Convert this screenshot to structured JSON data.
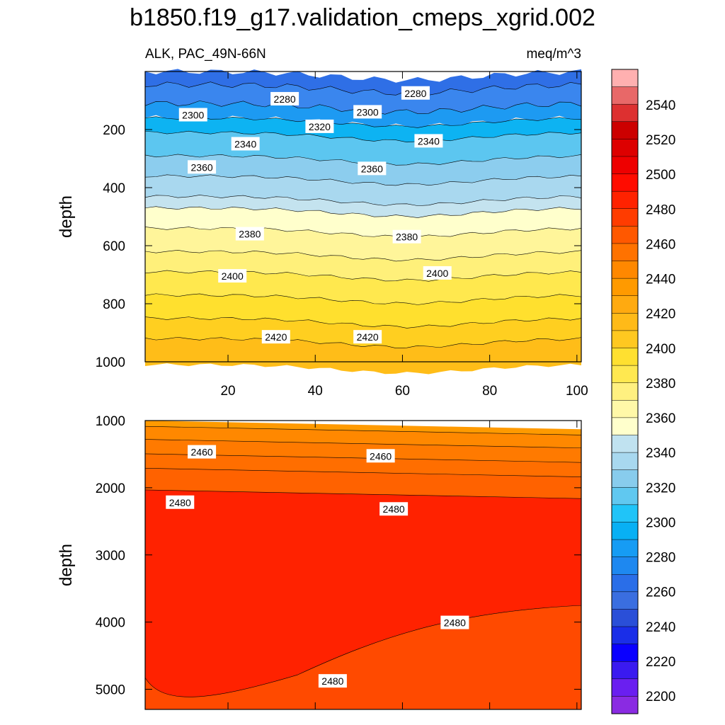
{
  "chart_data": {
    "type": "contour",
    "title": "b1850.f19_g17.validation_cmeps_xgrid.002",
    "left_subtitle": "ALK, PAC_49N-66N",
    "right_subtitle": "meq/m^3",
    "x_range": [
      1,
      101
    ],
    "x_ticks": [
      20,
      40,
      60,
      80,
      100
    ],
    "panels": [
      {
        "name": "upper",
        "ylabel": "depth",
        "ylim": [
          0,
          1000
        ],
        "y_ticks": [
          200,
          400,
          600,
          800,
          1000
        ],
        "contour_labels": [
          {
            "text": "2280",
            "x": 33,
            "y": 95
          },
          {
            "text": "2280",
            "x": 63,
            "y": 75
          },
          {
            "text": "2300",
            "x": 12,
            "y": 150
          },
          {
            "text": "2300",
            "x": 52,
            "y": 140
          },
          {
            "text": "2320",
            "x": 41,
            "y": 190
          },
          {
            "text": "2340",
            "x": 24,
            "y": 250
          },
          {
            "text": "2340",
            "x": 66,
            "y": 240
          },
          {
            "text": "2360",
            "x": 14,
            "y": 330
          },
          {
            "text": "2360",
            "x": 53,
            "y": 335
          },
          {
            "text": "2380",
            "x": 25,
            "y": 560
          },
          {
            "text": "2380",
            "x": 61,
            "y": 570
          },
          {
            "text": "2400",
            "x": 21,
            "y": 705
          },
          {
            "text": "2400",
            "x": 68,
            "y": 695
          },
          {
            "text": "2420",
            "x": 31,
            "y": 915
          },
          {
            "text": "2420",
            "x": 52,
            "y": 915
          }
        ]
      },
      {
        "name": "lower",
        "ylabel": "depth",
        "ylim": [
          1000,
          5300
        ],
        "y_ticks": [
          1000,
          2000,
          3000,
          4000,
          5000
        ],
        "contour_labels": [
          {
            "text": "2460",
            "x": 14,
            "y": 1470
          },
          {
            "text": "2460",
            "x": 55,
            "y": 1530
          },
          {
            "text": "2480",
            "x": 9,
            "y": 2220
          },
          {
            "text": "2480",
            "x": 58,
            "y": 2320
          },
          {
            "text": "2480",
            "x": 72,
            "y": 4010
          },
          {
            "text": "2480",
            "x": 44,
            "y": 4880
          }
        ]
      }
    ],
    "colorbar": {
      "label_values": [
        2200,
        2220,
        2240,
        2260,
        2280,
        2300,
        2320,
        2340,
        2360,
        2380,
        2400,
        2420,
        2440,
        2460,
        2480,
        2500,
        2520,
        2540
      ],
      "colors": [
        "#8a2be2",
        "#6a1ff0",
        "#3a1af0",
        "#0a00ff",
        "#1a2ee8",
        "#2a4fd8",
        "#3a6ee0",
        "#2a6ee8",
        "#1e88f0",
        "#169cf4",
        "#08b0f4",
        "#20c4f8",
        "#60c8f0",
        "#88cced",
        "#a8d8ef",
        "#c0e2f0",
        "#ffffcc",
        "#fff8a8",
        "#fff080",
        "#ffe850",
        "#ffe030",
        "#ffc820",
        "#ffba18",
        "#ffaa10",
        "#ff9a00",
        "#ff8800",
        "#ff7200",
        "#ff5800",
        "#ff3c00",
        "#ff2200",
        "#ff0c00",
        "#ee0000",
        "#dd0000",
        "#cc0000",
        "#dd3030",
        "#e86868",
        "#ffb0b0"
      ]
    }
  }
}
